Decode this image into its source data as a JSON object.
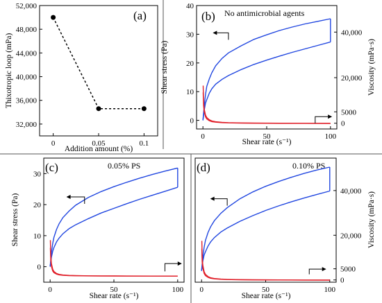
{
  "chart_data": [
    {
      "panel": "(a)",
      "type": "line",
      "x": [
        0,
        0.05,
        0.1
      ],
      "tick_labels_x": [
        "0",
        "0.05",
        "0.1"
      ],
      "y": [
        50000,
        34600,
        34600
      ],
      "xlabel": "Addition amount (%)",
      "ylabel": "Thixotropic loop (mPa)",
      "xlim": [
        -0.015,
        0.115
      ],
      "ylim": [
        30000,
        52000
      ],
      "yticks": [
        32000,
        36000,
        40000,
        44000,
        48000,
        52000
      ],
      "ytick_labels": [
        "32,000",
        "36,000",
        "40,000",
        "44,000",
        "48,000",
        "52,000"
      ],
      "style": "dotted line with filled circle markers",
      "grid": false
    },
    {
      "panel": "(b)",
      "type": "line",
      "annotation": "No antimicrobial agents",
      "xlabel": "Shear rate (s⁻¹)",
      "ylabel": "Shear stress (Pa)",
      "ylabel_right": "Viscosity (mPa·s)",
      "xlim": [
        -5,
        105
      ],
      "ylim": [
        -3,
        40
      ],
      "xticks": [
        0,
        50,
        100
      ],
      "yticks": [
        0,
        10,
        20,
        30,
        40
      ],
      "yticks_right": [
        0,
        5000,
        20000,
        40000
      ],
      "ytick_labels_right": [
        "0",
        "5000",
        "20,000",
        "40,000"
      ],
      "right_axis_zero_at_left_y": -1,
      "right_axis_scale_per_unit": 1260,
      "series": [
        {
          "axis": "left",
          "color": "#2046e0",
          "x": [
            0,
            1,
            2,
            3,
            5,
            7,
            10,
            15,
            20,
            30,
            40,
            50,
            60,
            70,
            80,
            90,
            100
          ],
          "y": [
            0,
            3.5,
            6.0,
            7.2,
            9.5,
            11.0,
            12.6,
            14.3,
            15.6,
            17.7,
            19.5,
            21.0,
            22.4,
            23.7,
            24.9,
            26.1,
            27.3
          ]
        },
        {
          "axis": "left",
          "color": "#2046e0",
          "x": [
            0,
            1,
            2,
            3,
            5,
            7,
            10,
            15,
            20,
            30,
            40,
            50,
            60,
            70,
            80,
            90,
            100
          ],
          "y": [
            0,
            5.0,
            9.0,
            11.8,
            14.5,
            16.6,
            19.0,
            21.6,
            23.5,
            26.0,
            28.2,
            29.8,
            31.3,
            32.5,
            33.6,
            34.5,
            35.4
          ]
        },
        {
          "axis": "right",
          "color": "#e0202a",
          "x": [
            0.2,
            0.5,
            1,
            2,
            3,
            5,
            7,
            10,
            15,
            20,
            30,
            40,
            50,
            60,
            80,
            100
          ],
          "y": [
            16500,
            9500,
            6200,
            3600,
            2500,
            1500,
            1000,
            650,
            400,
            260,
            140,
            80,
            45,
            20,
            -20,
            -50
          ]
        },
        {
          "axis": "right",
          "color": "#e0202a",
          "x": [
            0.2,
            0.5,
            1,
            2,
            3,
            5,
            7,
            10,
            15,
            20,
            30,
            40,
            50,
            60,
            80,
            100
          ],
          "y": [
            13500,
            7800,
            5000,
            2800,
            1900,
            1100,
            720,
            450,
            260,
            150,
            60,
            10,
            -20,
            -40,
            -60,
            -70
          ]
        }
      ],
      "arrows": [
        {
          "from_x": 20,
          "from_y": 30.5,
          "to_x": 11,
          "to_y": 30.5,
          "direction": "left"
        },
        {
          "from_x": 88,
          "from_y": -1,
          "to_x": 98,
          "to_y": 1.3,
          "direction": "right"
        }
      ],
      "grid": false
    },
    {
      "panel": "(c)",
      "type": "line",
      "annotation": "0.05% PS",
      "xlabel": "Shear rate (s⁻¹)",
      "ylabel": "Shear stress (Pa)",
      "xlim": [
        -5,
        105
      ],
      "ylim": [
        -5,
        35
      ],
      "xticks": [
        0,
        50,
        100
      ],
      "yticks": [
        0,
        10,
        20,
        30
      ],
      "right_axis_zero_at_left_y": -3,
      "right_axis_scale_per_unit": 1600,
      "series": [
        {
          "axis": "left",
          "color": "#2046e0",
          "x": [
            0,
            1,
            2,
            3,
            5,
            7,
            10,
            15,
            20,
            30,
            40,
            50,
            60,
            70,
            80,
            90,
            100
          ],
          "y": [
            0,
            3.0,
            5.0,
            6.2,
            8.0,
            9.2,
            10.6,
            12.3,
            13.5,
            15.5,
            17.3,
            18.8,
            20.3,
            21.7,
            23.0,
            24.3,
            25.6
          ]
        },
        {
          "axis": "left",
          "color": "#2046e0",
          "x": [
            0,
            1,
            2,
            3,
            5,
            7,
            10,
            15,
            20,
            30,
            40,
            50,
            60,
            70,
            80,
            90,
            100
          ],
          "y": [
            0,
            4.5,
            7.5,
            9.5,
            12.0,
            13.8,
            15.8,
            18.0,
            19.8,
            22.3,
            24.2,
            25.8,
            27.2,
            28.5,
            29.7,
            30.8,
            31.8
          ]
        },
        {
          "axis": "right",
          "color": "#e0202a",
          "x": [
            0.2,
            0.5,
            1,
            2,
            3,
            5,
            7,
            10,
            15,
            20,
            30,
            40,
            50,
            60,
            80,
            100
          ],
          "y": [
            18500,
            10500,
            6500,
            3500,
            2300,
            1300,
            850,
            520,
            300,
            190,
            90,
            40,
            10,
            -10,
            -40,
            -60
          ]
        },
        {
          "axis": "right",
          "color": "#e0202a",
          "x": [
            0.2,
            0.5,
            1,
            2,
            3,
            5,
            7,
            10,
            15,
            20,
            30,
            40,
            50,
            60,
            80,
            100
          ],
          "y": [
            14500,
            8200,
            5000,
            2600,
            1700,
            950,
            600,
            360,
            190,
            110,
            40,
            0,
            -30,
            -50,
            -70,
            -80
          ]
        }
      ],
      "arrows": [
        {
          "from_x": 27,
          "from_y": 22.5,
          "to_x": 16,
          "to_y": 22.5,
          "direction": "left"
        },
        {
          "from_x": 90,
          "from_y": -1.5,
          "to_x": 100,
          "to_y": 1.0,
          "direction": "right"
        }
      ],
      "grid": false
    },
    {
      "panel": "(d)",
      "type": "line",
      "annotation": "0.10% PS",
      "xlabel": "Shear rate (s⁻¹)",
      "ylabel_right": "Viscosity (mPa·s)",
      "xlim": [
        -5,
        105
      ],
      "ylim": [
        -5,
        50
      ],
      "xticks": [
        0,
        50,
        100
      ],
      "yticks_right": [
        0,
        5000,
        20000,
        40000
      ],
      "ytick_labels_right": [
        "0",
        "5000",
        "20,000",
        "40,000"
      ],
      "right_axis_zero_at_left_y": -4,
      "right_axis_scale_per_unit": 1010,
      "series": [
        {
          "axis": "left",
          "color": "#2046e0",
          "x": [
            0,
            1,
            2,
            3,
            5,
            7,
            10,
            15,
            20,
            30,
            40,
            50,
            60,
            70,
            80,
            90,
            100
          ],
          "y": [
            0,
            4.5,
            7.0,
            8.5,
            11.0,
            12.8,
            14.8,
            17.2,
            19.0,
            22.0,
            24.5,
            26.8,
            28.8,
            30.6,
            32.3,
            33.9,
            35.4
          ]
        },
        {
          "axis": "left",
          "color": "#2046e0",
          "x": [
            0,
            1,
            2,
            3,
            5,
            7,
            10,
            15,
            20,
            30,
            40,
            50,
            60,
            70,
            80,
            90,
            100
          ],
          "y": [
            0,
            6.5,
            10.5,
            13.5,
            17.0,
            19.5,
            22.3,
            25.5,
            28.0,
            32.0,
            35.0,
            37.5,
            39.6,
            41.5,
            43.2,
            44.7,
            46.0
          ]
        },
        {
          "axis": "right",
          "color": "#e0202a",
          "x": [
            0.2,
            0.5,
            1,
            2,
            3,
            5,
            7,
            10,
            15,
            20,
            30,
            40,
            50,
            60,
            80,
            100
          ],
          "y": [
            17500,
            10000,
            6500,
            3700,
            2500,
            1500,
            1000,
            650,
            400,
            260,
            130,
            70,
            30,
            0,
            -40,
            -60
          ]
        },
        {
          "axis": "right",
          "color": "#e0202a",
          "x": [
            0.2,
            0.5,
            1,
            2,
            3,
            5,
            7,
            10,
            15,
            20,
            30,
            40,
            50,
            60,
            80,
            100
          ],
          "y": [
            14000,
            8000,
            5200,
            2900,
            1950,
            1150,
            760,
            480,
            280,
            170,
            70,
            20,
            -10,
            -30,
            -60,
            -70
          ]
        }
      ],
      "arrows": [
        {
          "from_x": 20,
          "from_y": 32,
          "to_x": 10,
          "to_y": 32,
          "direction": "left"
        },
        {
          "from_x": 84,
          "from_y": -1.5,
          "to_x": 94,
          "to_y": 0.8,
          "direction": "right"
        }
      ],
      "grid": false
    }
  ],
  "colors": {
    "stress": "#2046e0",
    "viscosity": "#e0202a",
    "axis": "#000000"
  }
}
